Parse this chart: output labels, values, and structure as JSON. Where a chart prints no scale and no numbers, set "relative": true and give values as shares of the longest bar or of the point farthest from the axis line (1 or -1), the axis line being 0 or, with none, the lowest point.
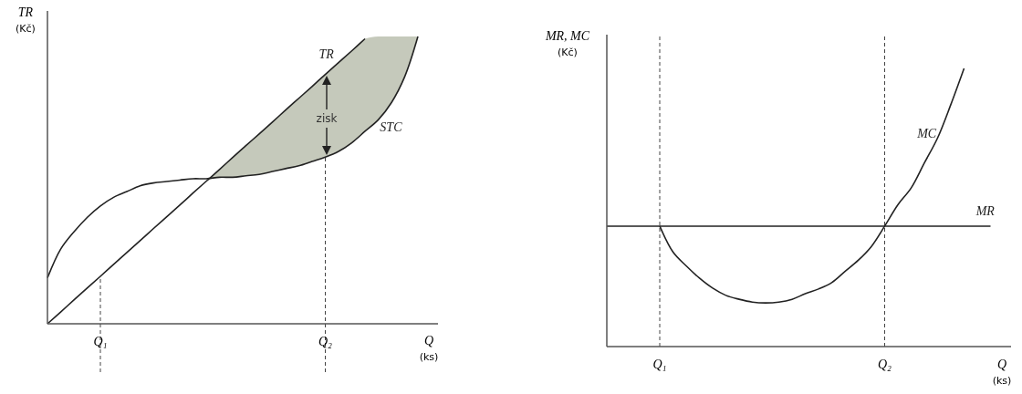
{
  "chart_data": [
    {
      "type": "line",
      "relative": true,
      "ylabel": "TR (Kč)",
      "xlabel": "Q (ks)",
      "legend": false,
      "grid": false,
      "categories": [
        null,
        null,
        null,
        null,
        "Q₁",
        null,
        null,
        null,
        null,
        null,
        null,
        null,
        null,
        null,
        null,
        null,
        null,
        null,
        null,
        null,
        null,
        "Q₂",
        null,
        null,
        null,
        null,
        null,
        null,
        null,
        null
      ],
      "series": [
        {
          "name": "TR",
          "color": "#222222",
          "values": [
            0,
            0.041,
            0.083,
            0.124,
            0.165,
            0.207,
            0.248,
            0.289,
            0.331,
            0.372,
            0.413,
            0.455,
            0.496,
            0.537,
            0.579,
            0.62,
            0.661,
            0.702,
            0.744,
            0.785,
            0.826,
            0.868,
            0.909,
            0.95,
            0.992,
            null,
            null,
            null,
            null,
            null
          ],
          "lower": [
            null,
            null,
            null,
            null,
            null,
            null,
            null,
            null,
            null,
            null,
            null,
            null,
            0.496,
            0.51,
            0.51,
            0.515,
            0.52,
            0.53,
            0.54,
            0.55,
            0.565,
            0.58,
            0.6,
            0.63,
            0.67,
            0.71,
            0.77,
            0.86,
            1.0,
            null
          ],
          "upper": [
            null,
            null,
            null,
            null,
            null,
            null,
            null,
            null,
            null,
            null,
            null,
            null,
            0.496,
            0.537,
            0.579,
            0.62,
            0.661,
            0.702,
            0.744,
            0.785,
            0.826,
            0.868,
            0.909,
            0.95,
            0.992,
            1.0,
            1.0,
            1.0,
            1.0,
            null
          ]
        },
        {
          "name": "STC",
          "color": "#222222",
          "values": [
            0.16,
            0.26,
            0.32,
            0.37,
            0.41,
            0.44,
            0.46,
            0.48,
            0.49,
            0.495,
            0.5,
            0.505,
            0.505,
            0.51,
            0.51,
            0.515,
            0.52,
            0.53,
            0.54,
            0.55,
            0.565,
            0.58,
            0.6,
            0.63,
            0.67,
            0.71,
            0.77,
            0.86,
            1.0,
            null
          ]
        }
      ],
      "ref_lines": [
        {
          "axis": "x",
          "value": "Q₁",
          "line_style": "dashed",
          "color": "#444444"
        },
        {
          "axis": "x",
          "value": "Q₂",
          "line_style": "dashed",
          "color": "#444444"
        }
      ],
      "annotations": [
        "zisk"
      ]
    },
    {
      "type": "line",
      "relative": true,
      "ylabel": "MR, MC (Kč)",
      "xlabel": "Q (ks)",
      "legend": false,
      "grid": false,
      "categories": [
        null,
        null,
        null,
        null,
        "Q₁",
        null,
        null,
        null,
        null,
        null,
        null,
        null,
        null,
        null,
        null,
        null,
        null,
        null,
        null,
        null,
        null,
        "Q₂",
        null,
        null,
        null,
        null,
        null,
        null,
        null,
        null
      ],
      "series": [
        {
          "name": "MC",
          "color": "#222222",
          "values": [
            null,
            null,
            null,
            null,
            0.433,
            0.34,
            0.29,
            0.246,
            0.21,
            0.184,
            0.17,
            0.16,
            0.157,
            0.16,
            0.17,
            0.19,
            0.207,
            0.23,
            0.27,
            0.31,
            0.36,
            0.433,
            0.51,
            0.57,
            0.66,
            0.75,
            0.87,
            1.0,
            null,
            null
          ]
        },
        {
          "name": "MR",
          "color": "#222222",
          "values": [
            0.433,
            0.433,
            0.433,
            0.433,
            0.433,
            0.433,
            0.433,
            0.433,
            0.433,
            0.433,
            0.433,
            0.433,
            0.433,
            0.433,
            0.433,
            0.433,
            0.433,
            0.433,
            0.433,
            0.433,
            0.433,
            0.433,
            0.433,
            0.433,
            0.433,
            0.433,
            0.433,
            0.433,
            0.433,
            0.433
          ]
        }
      ],
      "ref_lines": [
        {
          "axis": "x",
          "value": "Q₁",
          "line_style": "dashed",
          "color": "#444444"
        },
        {
          "axis": "x",
          "value": "Q₂",
          "line_style": "dashed",
          "color": "#444444"
        }
      ]
    }
  ]
}
